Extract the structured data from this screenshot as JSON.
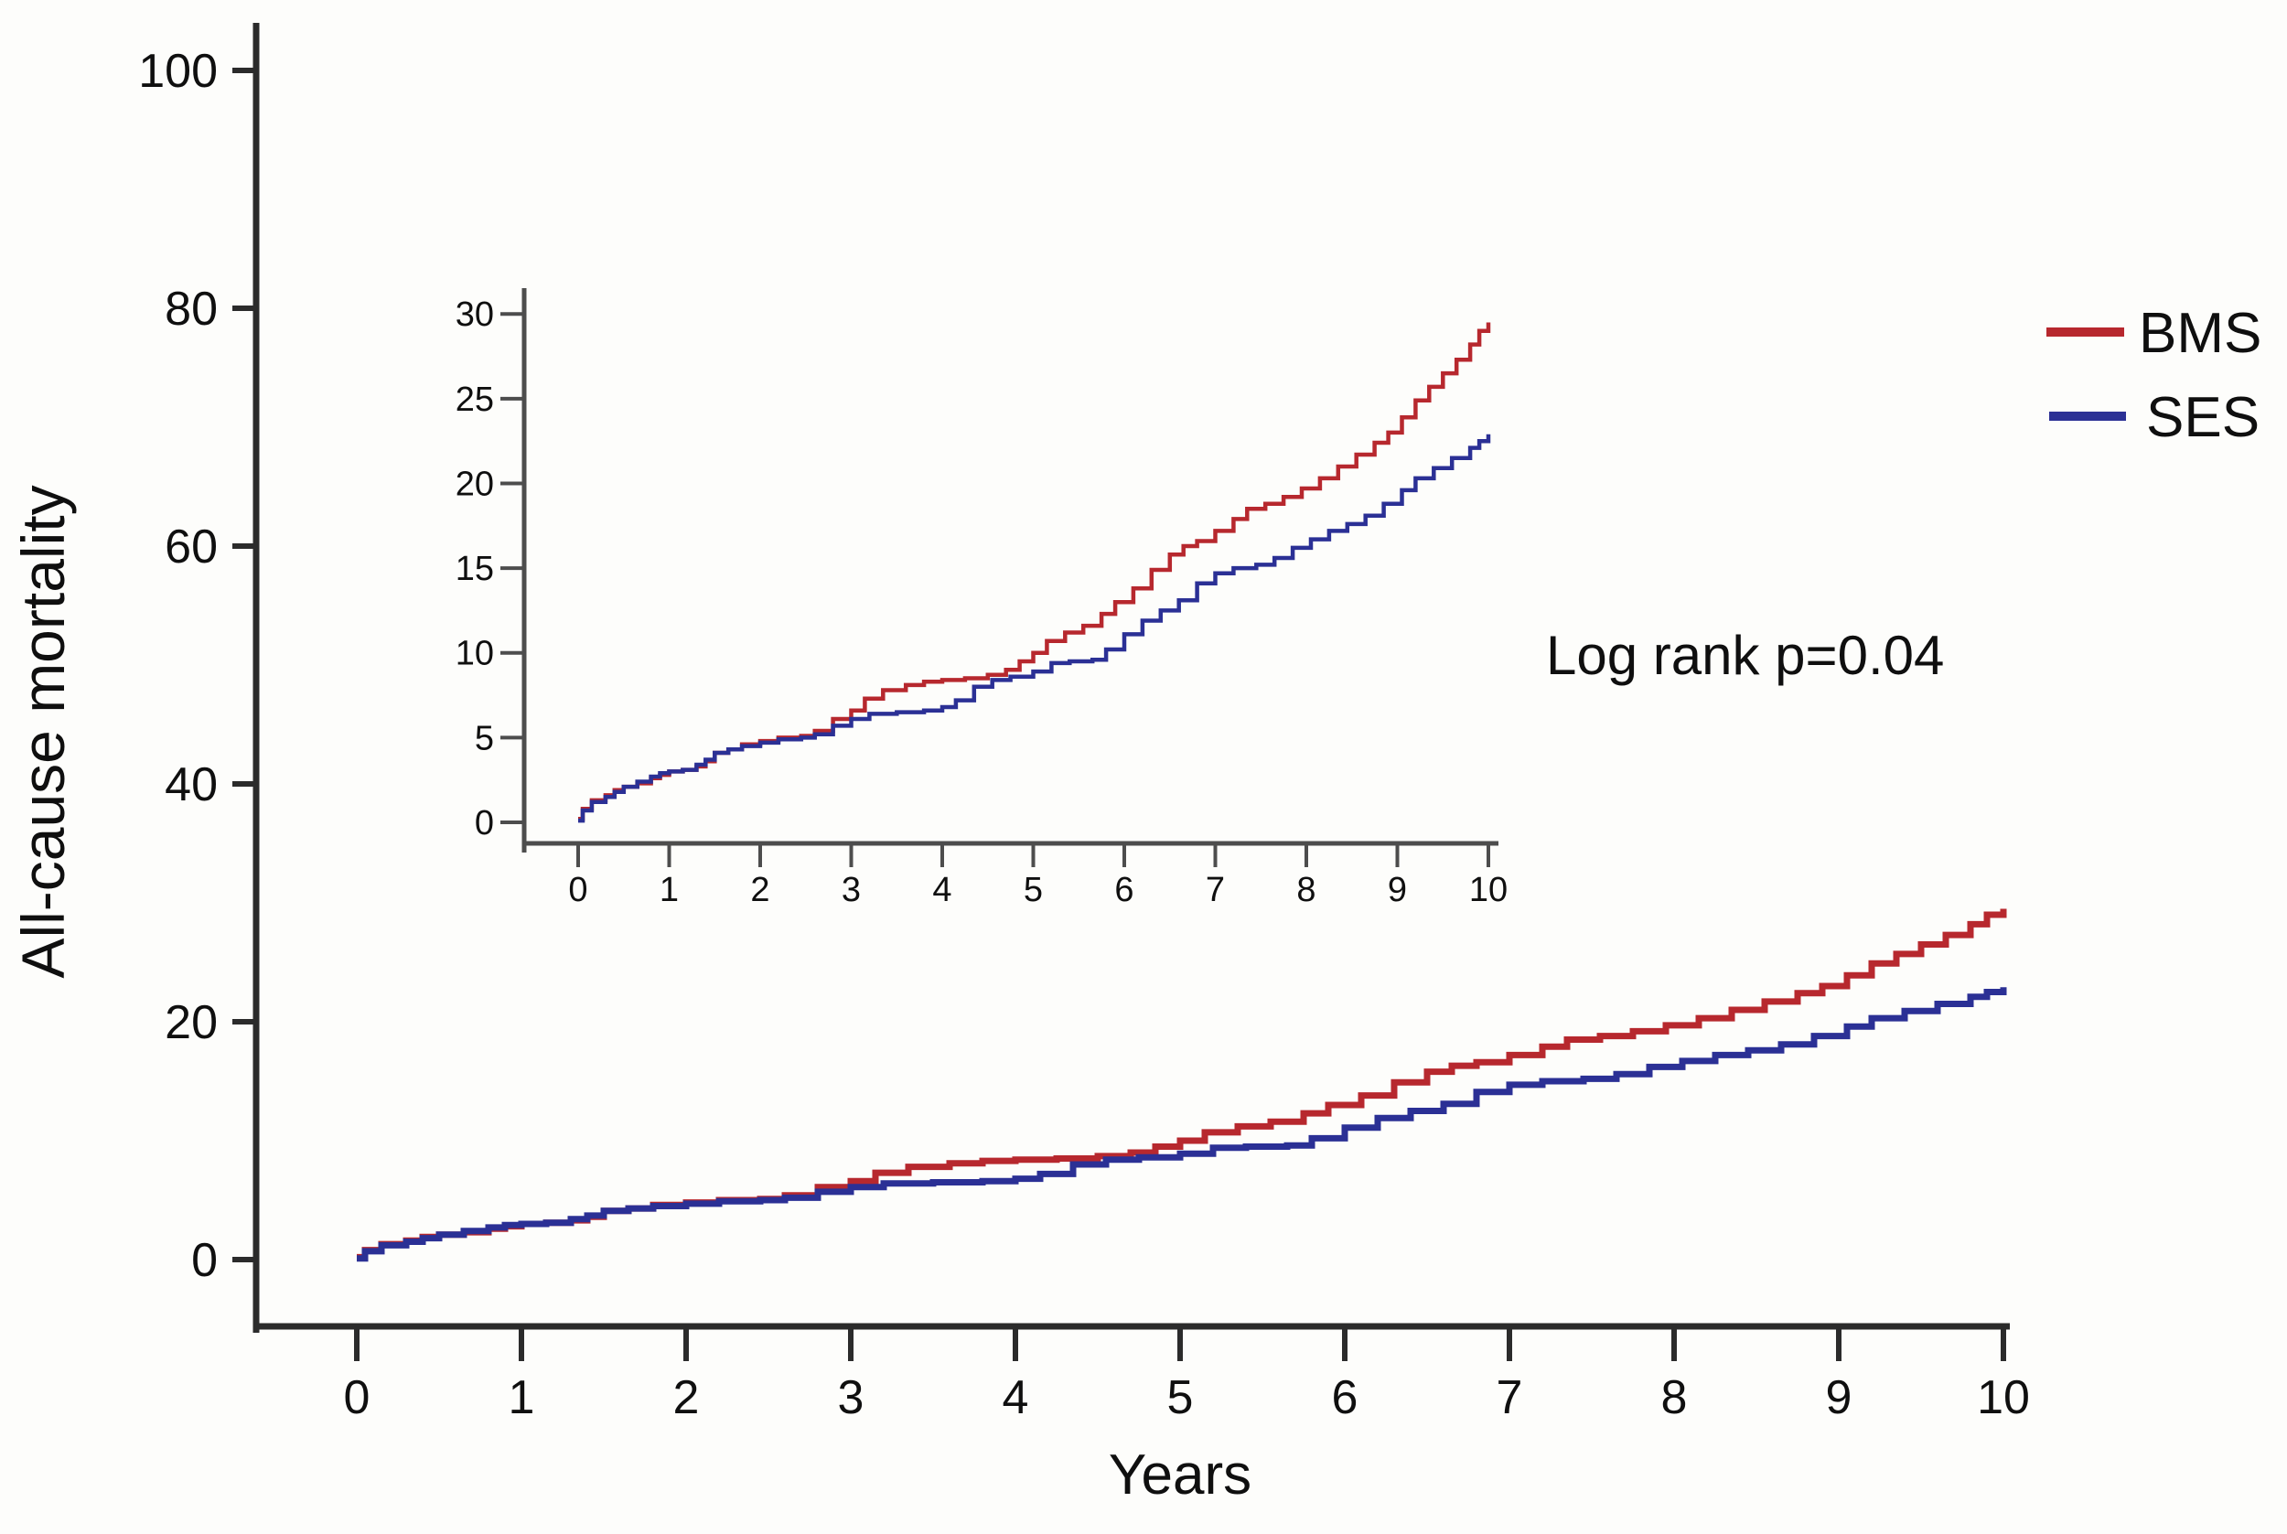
{
  "figure": {
    "background": "#fdfdfb",
    "axis_color_main": "#2b2b2b",
    "axis_color_inset": "#4d4d4d"
  },
  "chart_data": {
    "type": "line",
    "subtype": "kaplan-meier-cumulative-incidence-step",
    "title": "",
    "xlabel": "Years",
    "ylabel": "All-cause mortality",
    "annotation": "Log rank p=0.04",
    "x_ticks": [
      0,
      1,
      2,
      3,
      4,
      5,
      6,
      7,
      8,
      9,
      10
    ],
    "xlim": [
      0,
      10
    ],
    "grid": false,
    "legend_position": "top-right",
    "main_view": {
      "ylim": [
        0,
        100
      ],
      "yticks": [
        0,
        20,
        40,
        60,
        80,
        100
      ]
    },
    "inset_view": {
      "ylim": [
        0,
        30
      ],
      "yticks": [
        0,
        5,
        10,
        15,
        20,
        25,
        30
      ]
    },
    "series": [
      {
        "name": "BMS",
        "color": "#b7282e",
        "points": [
          [
            0,
            0.2
          ],
          [
            0.05,
            0.8
          ],
          [
            0.15,
            1.3
          ],
          [
            0.3,
            1.6
          ],
          [
            0.4,
            1.9
          ],
          [
            0.5,
            2.1
          ],
          [
            0.65,
            2.3
          ],
          [
            0.8,
            2.6
          ],
          [
            0.9,
            2.8
          ],
          [
            1.0,
            3.0
          ],
          [
            1.15,
            3.1
          ],
          [
            1.3,
            3.3
          ],
          [
            1.4,
            3.6
          ],
          [
            1.5,
            4.1
          ],
          [
            1.65,
            4.3
          ],
          [
            1.8,
            4.6
          ],
          [
            2.0,
            4.8
          ],
          [
            2.2,
            5.0
          ],
          [
            2.45,
            5.1
          ],
          [
            2.6,
            5.4
          ],
          [
            2.8,
            6.1
          ],
          [
            3.0,
            6.6
          ],
          [
            3.15,
            7.3
          ],
          [
            3.35,
            7.8
          ],
          [
            3.6,
            8.1
          ],
          [
            3.8,
            8.3
          ],
          [
            4.0,
            8.4
          ],
          [
            4.25,
            8.5
          ],
          [
            4.5,
            8.7
          ],
          [
            4.7,
            9.0
          ],
          [
            4.85,
            9.5
          ],
          [
            5.0,
            10.0
          ],
          [
            5.15,
            10.7
          ],
          [
            5.35,
            11.2
          ],
          [
            5.55,
            11.6
          ],
          [
            5.75,
            12.3
          ],
          [
            5.9,
            13.0
          ],
          [
            6.1,
            13.8
          ],
          [
            6.3,
            14.9
          ],
          [
            6.5,
            15.8
          ],
          [
            6.65,
            16.3
          ],
          [
            6.8,
            16.6
          ],
          [
            7.0,
            17.2
          ],
          [
            7.2,
            17.9
          ],
          [
            7.35,
            18.5
          ],
          [
            7.55,
            18.8
          ],
          [
            7.75,
            19.2
          ],
          [
            7.95,
            19.7
          ],
          [
            8.15,
            20.3
          ],
          [
            8.35,
            21.0
          ],
          [
            8.55,
            21.7
          ],
          [
            8.75,
            22.4
          ],
          [
            8.9,
            23.0
          ],
          [
            9.05,
            23.9
          ],
          [
            9.2,
            24.9
          ],
          [
            9.35,
            25.7
          ],
          [
            9.5,
            26.5
          ],
          [
            9.65,
            27.3
          ],
          [
            9.8,
            28.2
          ],
          [
            9.9,
            29.0
          ],
          [
            10,
            29.5
          ]
        ]
      },
      {
        "name": "SES",
        "color": "#2b3095",
        "points": [
          [
            0,
            0.1
          ],
          [
            0.05,
            0.7
          ],
          [
            0.15,
            1.2
          ],
          [
            0.3,
            1.5
          ],
          [
            0.4,
            1.8
          ],
          [
            0.5,
            2.1
          ],
          [
            0.65,
            2.4
          ],
          [
            0.8,
            2.7
          ],
          [
            0.9,
            2.9
          ],
          [
            1.0,
            3.0
          ],
          [
            1.15,
            3.1
          ],
          [
            1.3,
            3.4
          ],
          [
            1.4,
            3.7
          ],
          [
            1.5,
            4.1
          ],
          [
            1.65,
            4.3
          ],
          [
            1.8,
            4.5
          ],
          [
            2.0,
            4.7
          ],
          [
            2.2,
            4.9
          ],
          [
            2.45,
            5.0
          ],
          [
            2.6,
            5.2
          ],
          [
            2.8,
            5.7
          ],
          [
            3.0,
            6.1
          ],
          [
            3.2,
            6.4
          ],
          [
            3.5,
            6.5
          ],
          [
            3.8,
            6.6
          ],
          [
            4.0,
            6.8
          ],
          [
            4.15,
            7.2
          ],
          [
            4.35,
            8.0
          ],
          [
            4.55,
            8.4
          ],
          [
            4.75,
            8.6
          ],
          [
            5.0,
            8.9
          ],
          [
            5.2,
            9.4
          ],
          [
            5.4,
            9.5
          ],
          [
            5.65,
            9.6
          ],
          [
            5.8,
            10.2
          ],
          [
            6.0,
            11.1
          ],
          [
            6.2,
            11.9
          ],
          [
            6.4,
            12.5
          ],
          [
            6.6,
            13.1
          ],
          [
            6.8,
            14.1
          ],
          [
            7.0,
            14.7
          ],
          [
            7.2,
            15.0
          ],
          [
            7.45,
            15.2
          ],
          [
            7.65,
            15.6
          ],
          [
            7.85,
            16.2
          ],
          [
            8.05,
            16.7
          ],
          [
            8.25,
            17.2
          ],
          [
            8.45,
            17.6
          ],
          [
            8.65,
            18.1
          ],
          [
            8.85,
            18.8
          ],
          [
            9.05,
            19.6
          ],
          [
            9.2,
            20.3
          ],
          [
            9.4,
            20.9
          ],
          [
            9.6,
            21.5
          ],
          [
            9.8,
            22.1
          ],
          [
            9.9,
            22.5
          ],
          [
            10,
            22.9
          ]
        ]
      }
    ]
  }
}
